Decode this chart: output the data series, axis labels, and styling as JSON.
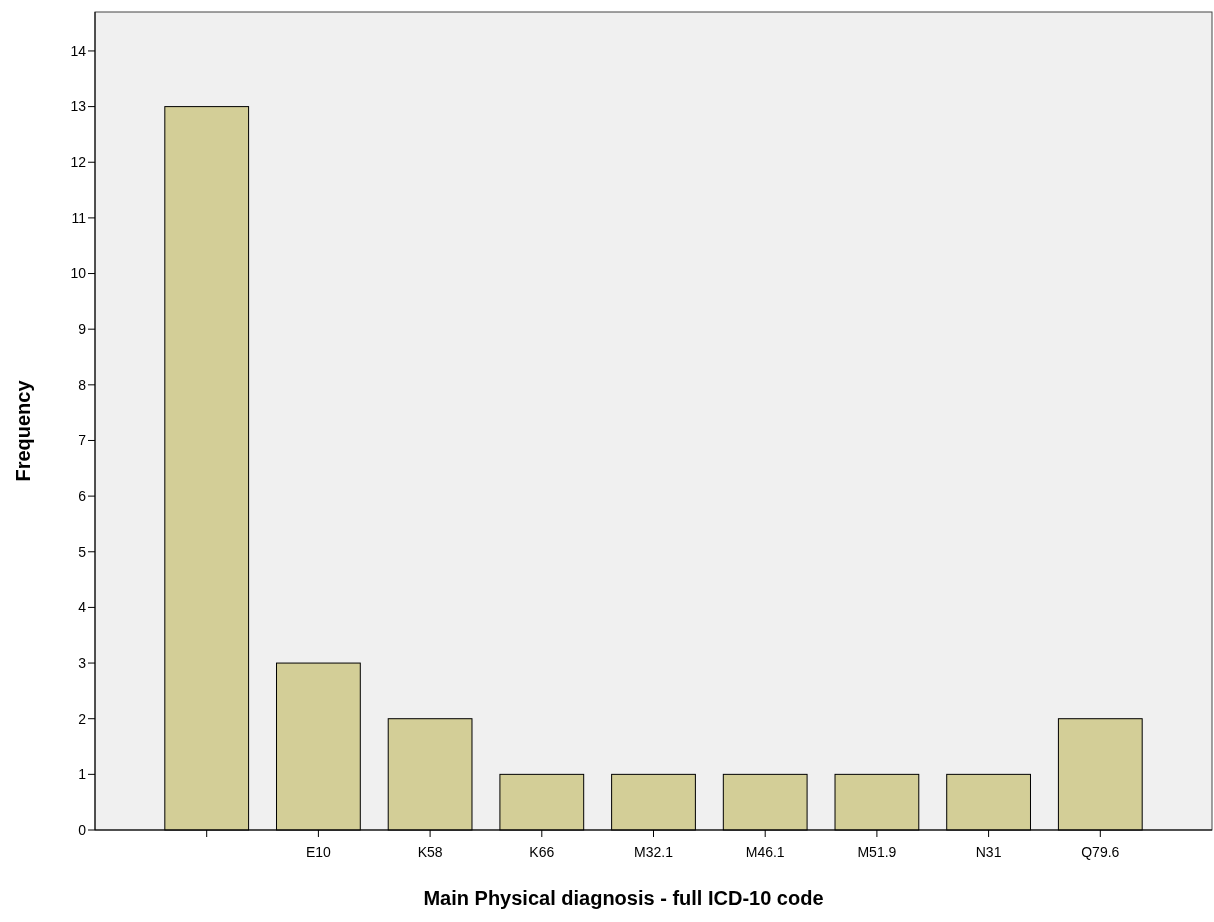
{
  "chart_data": {
    "type": "bar",
    "xlabel": "Main Physical diagnosis - full ICD-10 code",
    "ylabel": "Frequency",
    "categories": [
      null,
      "E10",
      "K58",
      "K66",
      "M32.1",
      "M46.1",
      "M51.9",
      "N31",
      "Q79.6"
    ],
    "values": [
      13,
      3,
      2,
      1,
      1,
      1,
      1,
      1,
      2
    ],
    "color": "#d3ce97",
    "ylim": [
      0,
      14.7
    ],
    "yticks": [
      0,
      1,
      2,
      3,
      4,
      5,
      6,
      7,
      8,
      9,
      10,
      11,
      12,
      13,
      14
    ],
    "grid": false
  }
}
